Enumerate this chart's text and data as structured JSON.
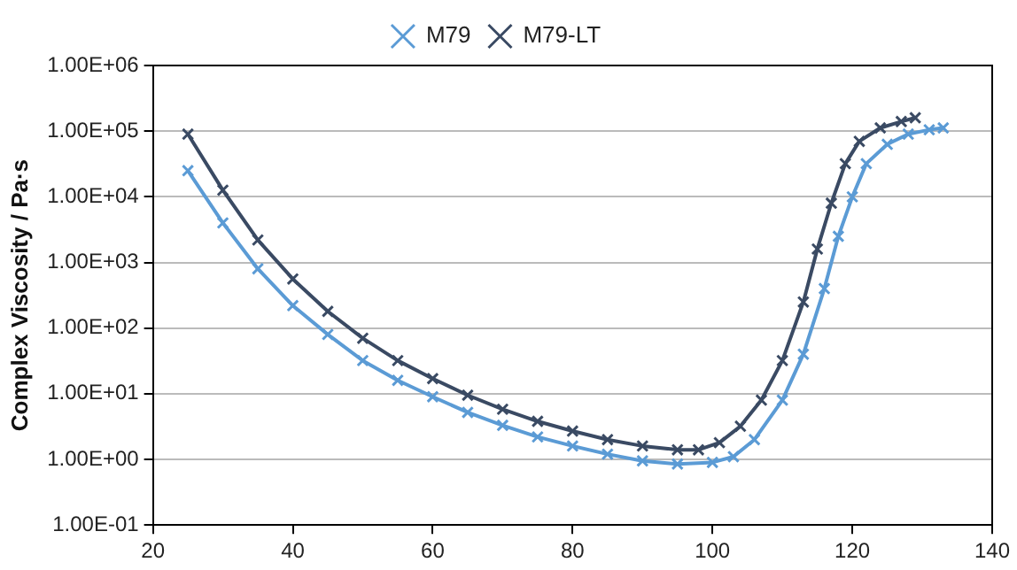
{
  "chart_data": {
    "type": "line",
    "ylabel": "Complex Viscosity / Pa·s",
    "log": "y",
    "grid": "y",
    "legend": "top",
    "marker": "cross",
    "line_style": "solid",
    "xlim": [
      20,
      140
    ],
    "xticks": [
      20,
      40,
      60,
      80,
      100,
      120,
      140
    ],
    "ylim": [
      0.1,
      1000000
    ],
    "yticks": [
      {
        "value": 0.1,
        "label": "1.00E-01"
      },
      {
        "value": 1,
        "label": "1.00E+00"
      },
      {
        "value": 10,
        "label": "1.00E+01"
      },
      {
        "value": 100,
        "label": "1.00E+02"
      },
      {
        "value": 1000,
        "label": "1.00E+03"
      },
      {
        "value": 10000,
        "label": "1.00E+04"
      },
      {
        "value": 100000,
        "label": "1.00E+05"
      },
      {
        "value": 1000000,
        "label": "1.00E+06"
      }
    ],
    "series": [
      {
        "name": "M79",
        "color": "#5b9bd5",
        "x": [
          25,
          30,
          35,
          40,
          45,
          50,
          55,
          60,
          65,
          70,
          75,
          80,
          85,
          90,
          95,
          100,
          103,
          106,
          110,
          113,
          116,
          118,
          120,
          122,
          125,
          128,
          131,
          133
        ],
        "values": [
          25000,
          4000,
          800,
          220,
          80,
          32,
          16,
          9,
          5.2,
          3.3,
          2.2,
          1.6,
          1.2,
          0.95,
          0.85,
          0.9,
          1.1,
          2,
          8,
          40,
          400,
          2500,
          10000,
          32000,
          63000,
          90000,
          105000,
          112000
        ]
      },
      {
        "name": "M79-LT",
        "color": "#3a4a63",
        "x": [
          25,
          30,
          35,
          40,
          45,
          50,
          55,
          60,
          65,
          70,
          75,
          80,
          85,
          90,
          95,
          98,
          101,
          104,
          107,
          110,
          113,
          115,
          117,
          119,
          121,
          124,
          127,
          129
        ],
        "values": [
          90000,
          12600,
          2200,
          560,
          180,
          70,
          32,
          17,
          9.5,
          5.8,
          3.8,
          2.7,
          2,
          1.6,
          1.4,
          1.4,
          1.8,
          3.2,
          8,
          32,
          250,
          1600,
          8000,
          32000,
          70000,
          112000,
          140000,
          160000
        ]
      }
    ]
  }
}
